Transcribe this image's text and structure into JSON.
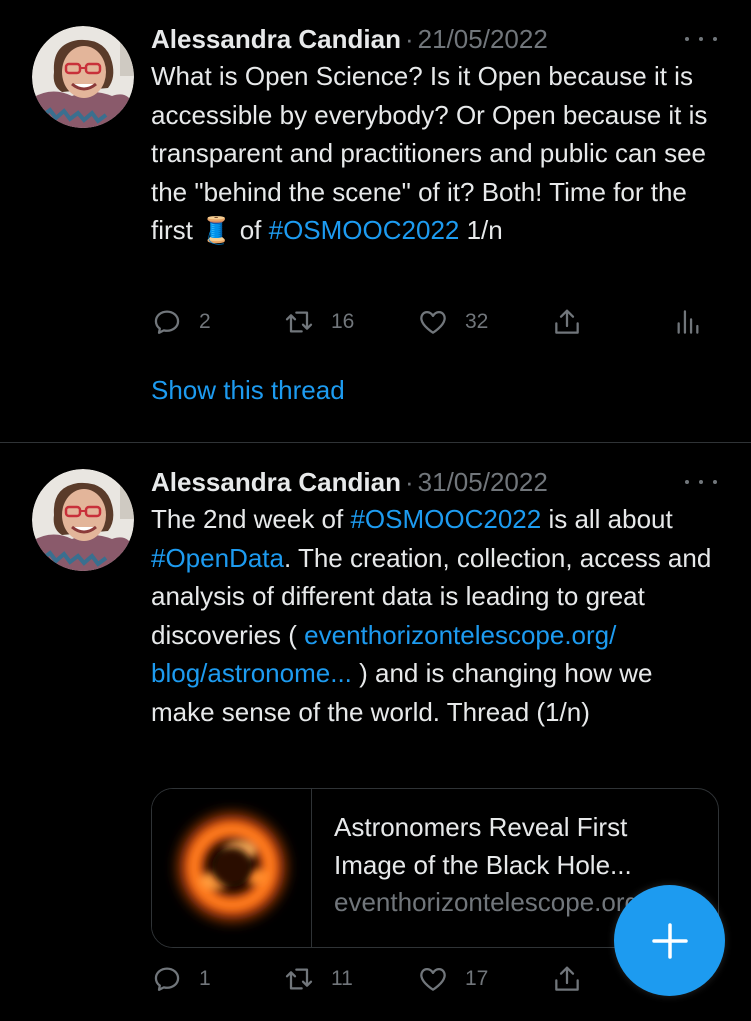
{
  "tweets": [
    {
      "author": "Alessandra Candian",
      "separator": "·",
      "date": "21/05/2022",
      "text_parts": [
        "What is Open Science? Is it Open because it is accessible by everybody? Or Open because it is transparent and practitioners and public can see the \"behind the scene\" of it? Both! Time for the first ",
        "🧵",
        " of ",
        "#OSMOOC2022",
        " 1/n"
      ],
      "replies": "2",
      "retweets": "16",
      "likes": "32",
      "show_thread": "Show this thread"
    },
    {
      "author": "Alessandra Candian",
      "separator": "·",
      "date": "31/05/2022",
      "text_parts": [
        "The 2nd week of ",
        "#OSMOOC2022",
        " is all about ",
        "#OpenData",
        ". The creation, collection, access and analysis of different data is leading to great discoveries ( ",
        "eventhorizontelescope.org/ blog/astronome...",
        " ) and is changing how we make sense of the world. Thread (1/n)"
      ],
      "card": {
        "title": "Astronomers Reveal First Image of the Black Hole...",
        "domain": "eventhorizontelescope.org"
      },
      "replies": "1",
      "retweets": "11",
      "likes": "17"
    }
  ],
  "fab": {
    "icon": "plus-icon",
    "color": "#1d9bf0"
  },
  "colors": {
    "background": "#000000",
    "text": "#e7e9ea",
    "muted": "#71767b",
    "accent": "#1d9bf0",
    "divider": "#2f3336"
  }
}
